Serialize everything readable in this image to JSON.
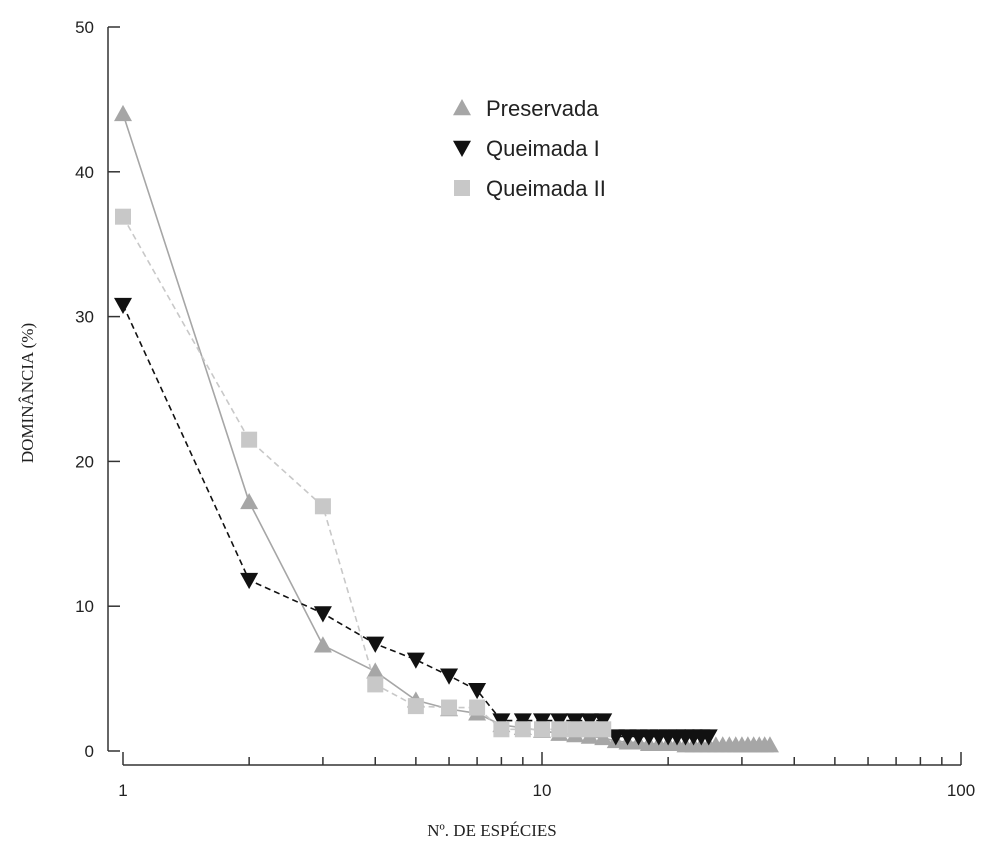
{
  "chart_data": {
    "type": "line",
    "xlabel": "Nº. DE ESPÉCIES",
    "ylabel": "DOMINÂNCIA (%)",
    "x_scale": "log",
    "xlim": [
      1,
      100
    ],
    "ylim": [
      0,
      50
    ],
    "x_ticks": [
      1,
      10,
      100
    ],
    "y_ticks": [
      0,
      10,
      20,
      30,
      40,
      50
    ],
    "legend_position": "top-center",
    "grid": false,
    "series": [
      {
        "name": "Preservada",
        "marker": "triangle-up",
        "color": "#a6a6a6",
        "line_style": "solid",
        "x": [
          1,
          2,
          3,
          4,
          5,
          6,
          7,
          8,
          9,
          10,
          11,
          12,
          13,
          14,
          15,
          16,
          17,
          18,
          19,
          20,
          21,
          22,
          23,
          24,
          25,
          26,
          27,
          28,
          29,
          30,
          31,
          32,
          33,
          34,
          35
        ],
        "y": [
          44,
          17.2,
          7.3,
          5.5,
          3.5,
          2.9,
          2.6,
          1.8,
          1.6,
          1.4,
          1.2,
          1.1,
          1.0,
          0.9,
          0.7,
          0.6,
          0.6,
          0.5,
          0.5,
          0.5,
          0.5,
          0.4,
          0.4,
          0.4,
          0.4,
          0.4,
          0.4,
          0.4,
          0.4,
          0.4,
          0.4,
          0.4,
          0.4,
          0.4,
          0.4
        ]
      },
      {
        "name": "Queimada I",
        "marker": "triangle-down",
        "color": "#111111",
        "line_style": "dashed",
        "x": [
          1,
          2,
          3,
          4,
          5,
          6,
          7,
          8,
          9,
          10,
          11,
          12,
          13,
          14,
          15,
          16,
          17,
          18,
          19,
          20,
          21,
          22,
          23,
          24,
          25
        ],
        "y": [
          30.8,
          11.8,
          9.5,
          7.4,
          6.3,
          5.2,
          4.2,
          2.1,
          2.1,
          2.1,
          2.1,
          2.1,
          2.1,
          2.1,
          1.0,
          1.0,
          1.0,
          1.0,
          1.0,
          1.0,
          1.0,
          1.0,
          1.0,
          1.0,
          1.0
        ]
      },
      {
        "name": "Queimada II",
        "marker": "square",
        "color": "#c8c8c8",
        "line_style": "dashed",
        "x": [
          1,
          2,
          3,
          4,
          5,
          6,
          7,
          8,
          9,
          10,
          11,
          12,
          13,
          14
        ],
        "y": [
          36.9,
          21.5,
          16.9,
          4.6,
          3.1,
          3.0,
          3.0,
          1.5,
          1.5,
          1.5,
          1.5,
          1.5,
          1.5,
          1.5
        ]
      }
    ]
  }
}
